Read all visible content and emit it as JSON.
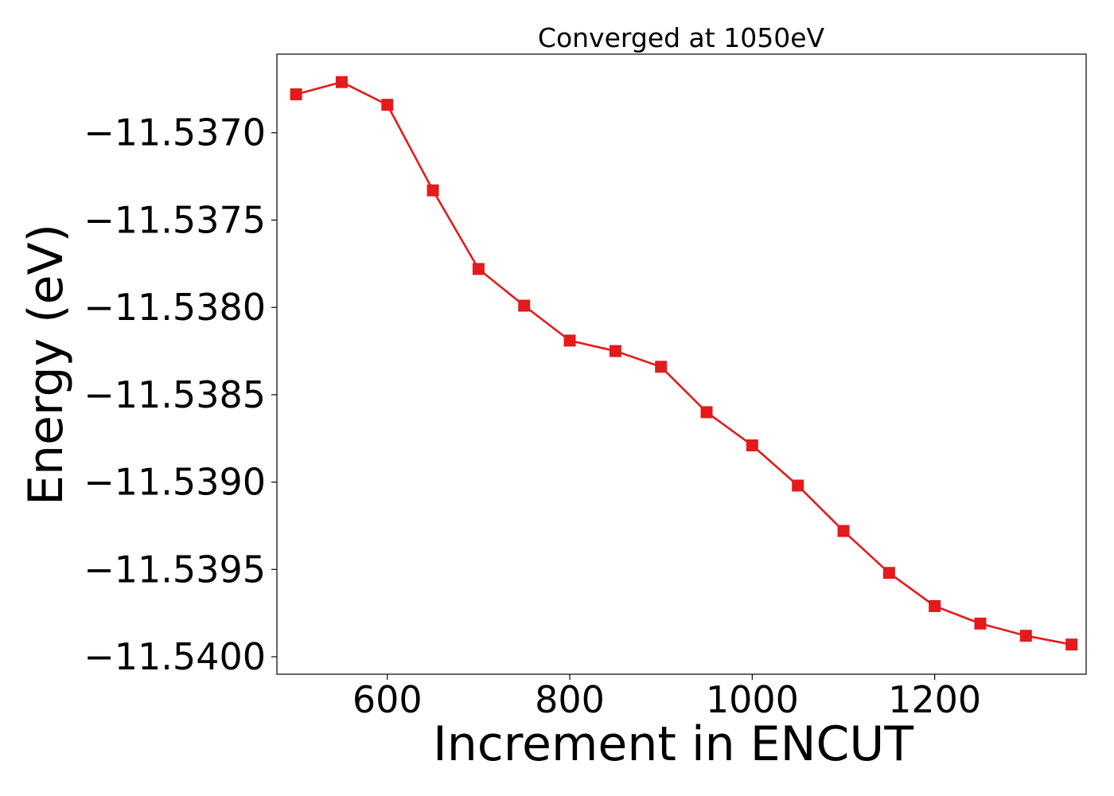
{
  "chart_data": {
    "type": "line",
    "title": "Converged at 1050eV",
    "xlabel": "Increment in ENCUT",
    "ylabel": "Energy (eV)",
    "xlim": [
      479,
      1366
    ],
    "ylim": [
      -11.5401,
      -11.53655
    ],
    "xticks": [
      600,
      800,
      1000,
      1200
    ],
    "xtick_labels": [
      "600",
      "800",
      "1000",
      "1200"
    ],
    "yticks": [
      -11.537,
      -11.5375,
      -11.538,
      -11.5385,
      -11.539,
      -11.5395,
      -11.54
    ],
    "ytick_labels": [
      "−11.5370",
      "−11.5375",
      "−11.5380",
      "−11.5385",
      "−11.5390",
      "−11.5395",
      "−11.5400"
    ],
    "grid": false,
    "series": [
      {
        "color": "#e41a1c",
        "marker": "square",
        "x": [
          500,
          550,
          600,
          650,
          700,
          750,
          800,
          850,
          900,
          950,
          1000,
          1050,
          1100,
          1150,
          1200,
          1250,
          1300,
          1350
        ],
        "values": [
          -11.53678,
          -11.53671,
          -11.53684,
          -11.53733,
          -11.53778,
          -11.53799,
          -11.53819,
          -11.53825,
          -11.53834,
          -11.5386,
          -11.53879,
          -11.53902,
          -11.53928,
          -11.53952,
          -11.53971,
          -11.53981,
          -11.53988,
          -11.53993
        ]
      }
    ]
  }
}
